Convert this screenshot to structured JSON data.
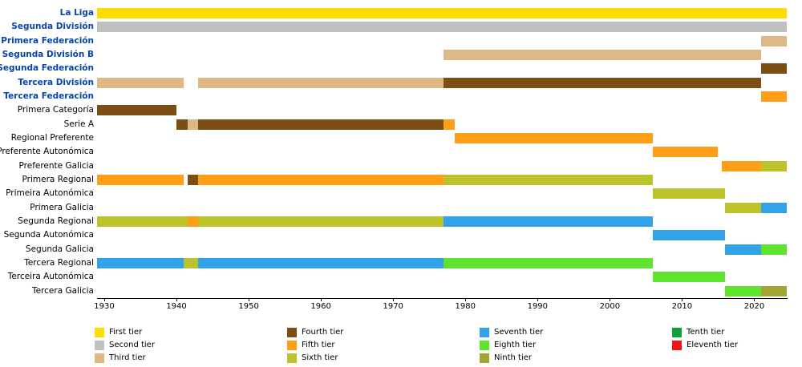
{
  "colors": {
    "link": "#0645AD",
    "axis": "#000000",
    "background": "#FFFFFF"
  },
  "chart_data": {
    "type": "timeline",
    "x_axis": {
      "min": 1929,
      "max": 2024.5,
      "ticks": [
        1930,
        1940,
        1950,
        1960,
        1970,
        1980,
        1990,
        2000,
        2010,
        2020
      ]
    },
    "tiers": [
      {
        "tier": 1,
        "label": "First tier",
        "color": "#FFDC00"
      },
      {
        "tier": 2,
        "label": "Second tier",
        "color": "#C0C0C0"
      },
      {
        "tier": 3,
        "label": "Third tier",
        "color": "#DEB887"
      },
      {
        "tier": 4,
        "label": "Fourth tier",
        "color": "#7D4E13"
      },
      {
        "tier": 5,
        "label": "Fifth tier",
        "color": "#FF9E17"
      },
      {
        "tier": 6,
        "label": "Sixth tier",
        "color": "#BCC32A"
      },
      {
        "tier": 7,
        "label": "Seventh tier",
        "color": "#32A3E8"
      },
      {
        "tier": 8,
        "label": "Eighth tier",
        "color": "#5EE42C"
      },
      {
        "tier": 9,
        "label": "Ninth tier",
        "color": "#A3A534"
      },
      {
        "tier": 10,
        "label": "Tenth tier",
        "color": "#0FA03C"
      },
      {
        "tier": 11,
        "label": "Eleventh tier",
        "color": "#F21414"
      }
    ],
    "rows": [
      {
        "label": "La Liga",
        "is_link": true,
        "segments": [
          {
            "start": 1929,
            "end": 2024.5,
            "tier": 1
          }
        ]
      },
      {
        "label": "Segunda División",
        "is_link": true,
        "segments": [
          {
            "start": 1929,
            "end": 2024.5,
            "tier": 2
          }
        ]
      },
      {
        "label": "Primera Federación",
        "is_link": true,
        "segments": [
          {
            "start": 2021,
            "end": 2024.5,
            "tier": 3
          }
        ]
      },
      {
        "label": "Segunda División B",
        "is_link": true,
        "segments": [
          {
            "start": 1977,
            "end": 2021,
            "tier": 3
          }
        ]
      },
      {
        "label": "Segunda Federación",
        "is_link": true,
        "segments": [
          {
            "start": 2021,
            "end": 2024.5,
            "tier": 4
          }
        ]
      },
      {
        "label": "Tercera División",
        "is_link": true,
        "segments": [
          {
            "start": 1929,
            "end": 1941,
            "tier": 3
          },
          {
            "start": 1943,
            "end": 1977,
            "tier": 3
          },
          {
            "start": 1977,
            "end": 2021,
            "tier": 4
          }
        ]
      },
      {
        "label": "Tercera Federación",
        "is_link": true,
        "segments": [
          {
            "start": 2021,
            "end": 2024.5,
            "tier": 5
          }
        ]
      },
      {
        "label": "Primera Categoría",
        "is_link": false,
        "segments": [
          {
            "start": 1929,
            "end": 1940,
            "tier": 4
          }
        ]
      },
      {
        "label": "Serie A",
        "is_link": false,
        "segments": [
          {
            "start": 1940,
            "end": 1941.5,
            "tier": 4
          },
          {
            "start": 1941.5,
            "end": 1943,
            "tier": 3
          },
          {
            "start": 1943,
            "end": 1977,
            "tier": 4
          },
          {
            "start": 1977,
            "end": 1978.5,
            "tier": 5
          }
        ]
      },
      {
        "label": "Regional Preferente",
        "is_link": false,
        "segments": [
          {
            "start": 1978.5,
            "end": 2006,
            "tier": 5
          }
        ]
      },
      {
        "label": "Preferente Autonómica",
        "is_link": false,
        "segments": [
          {
            "start": 2006,
            "end": 2015,
            "tier": 5
          }
        ]
      },
      {
        "label": "Preferente Galicia",
        "is_link": false,
        "segments": [
          {
            "start": 2015.5,
            "end": 2021,
            "tier": 5
          },
          {
            "start": 2021,
            "end": 2024.5,
            "tier": 6
          }
        ]
      },
      {
        "label": "Primera Regional",
        "is_link": false,
        "segments": [
          {
            "start": 1929,
            "end": 1941,
            "tier": 5
          },
          {
            "start": 1941.5,
            "end": 1943,
            "tier": 4
          },
          {
            "start": 1943,
            "end": 1977,
            "tier": 5
          },
          {
            "start": 1977,
            "end": 2006,
            "tier": 6
          }
        ]
      },
      {
        "label": "Primeira Autonómica",
        "is_link": false,
        "segments": [
          {
            "start": 2006,
            "end": 2016,
            "tier": 6
          }
        ]
      },
      {
        "label": "Primera Galicia",
        "is_link": false,
        "segments": [
          {
            "start": 2016,
            "end": 2021,
            "tier": 6
          },
          {
            "start": 2021,
            "end": 2024.5,
            "tier": 7
          }
        ]
      },
      {
        "label": "Segunda Regional",
        "is_link": false,
        "segments": [
          {
            "start": 1929,
            "end": 1941.5,
            "tier": 6
          },
          {
            "start": 1941.5,
            "end": 1943,
            "tier": 5
          },
          {
            "start": 1943,
            "end": 1977,
            "tier": 6
          },
          {
            "start": 1977,
            "end": 2006,
            "tier": 7
          }
        ]
      },
      {
        "label": "Segunda Autonómica",
        "is_link": false,
        "segments": [
          {
            "start": 2006,
            "end": 2016,
            "tier": 7
          }
        ]
      },
      {
        "label": "Segunda Galicia",
        "is_link": false,
        "segments": [
          {
            "start": 2016,
            "end": 2021,
            "tier": 7
          },
          {
            "start": 2021,
            "end": 2024.5,
            "tier": 8
          }
        ]
      },
      {
        "label": "Tercera Regional",
        "is_link": false,
        "segments": [
          {
            "start": 1929,
            "end": 1941,
            "tier": 7
          },
          {
            "start": 1941,
            "end": 1943,
            "tier": 6
          },
          {
            "start": 1943,
            "end": 1977,
            "tier": 7
          },
          {
            "start": 1977,
            "end": 2006,
            "tier": 8
          }
        ]
      },
      {
        "label": "Terceira Autonómica",
        "is_link": false,
        "segments": [
          {
            "start": 2006,
            "end": 2016,
            "tier": 8
          }
        ]
      },
      {
        "label": "Tercera Galicia",
        "is_link": false,
        "segments": [
          {
            "start": 2016,
            "end": 2021,
            "tier": 8
          },
          {
            "start": 2021,
            "end": 2024.5,
            "tier": 9
          }
        ]
      }
    ],
    "legend": {
      "items_per_column": 3,
      "position": "bottom"
    }
  }
}
